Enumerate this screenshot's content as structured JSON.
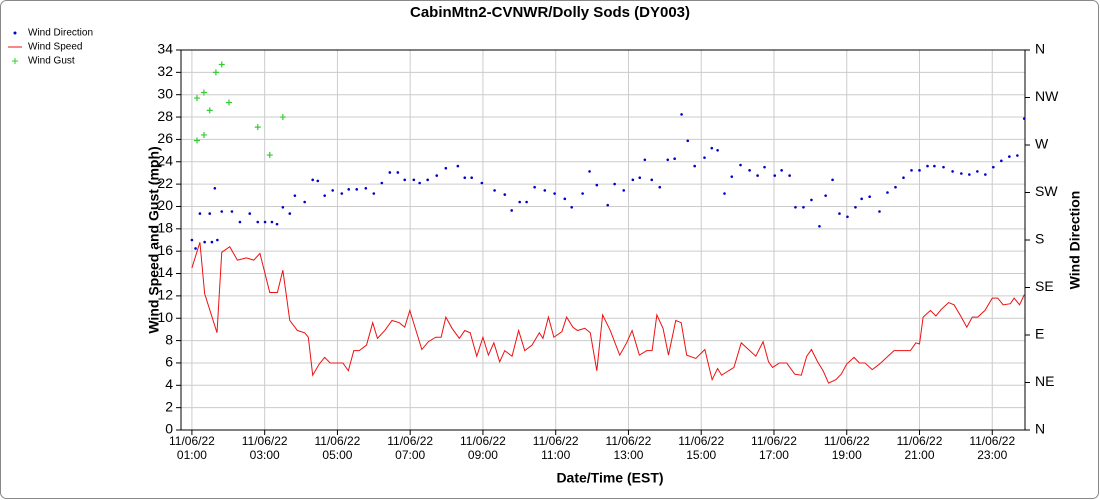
{
  "chart_data": {
    "type": "line",
    "title": "CabinMtn2-CVNWR/Dolly Sods (DY003)",
    "xlabel": "Date/Time (EST)",
    "ylabel": "Wind Speed and Gust (mph)",
    "y2label": "Wind Direction",
    "grid": true,
    "legend": "top-left",
    "xlim": [
      0.7,
      23.9
    ],
    "xticks": [
      {
        "value": 1,
        "label": "11/06/22 01:00"
      },
      {
        "value": 3,
        "label": "11/06/22 03:00"
      },
      {
        "value": 5,
        "label": "11/06/22 05:00"
      },
      {
        "value": 7,
        "label": "11/06/22 07:00"
      },
      {
        "value": 9,
        "label": "11/06/22 09:00"
      },
      {
        "value": 11,
        "label": "11/06/22 11:00"
      },
      {
        "value": 13,
        "label": "11/06/22 13:00"
      },
      {
        "value": 15,
        "label": "11/06/22 15:00"
      },
      {
        "value": 17,
        "label": "11/06/22 17:00"
      },
      {
        "value": 19,
        "label": "11/06/22 19:00"
      },
      {
        "value": 21,
        "label": "11/06/22 21:00"
      },
      {
        "value": 23,
        "label": "11/06/22 23:00"
      }
    ],
    "ylim": [
      0,
      34
    ],
    "yticks": [
      0,
      2,
      4,
      6,
      8,
      10,
      12,
      14,
      16,
      18,
      20,
      22,
      24,
      26,
      28,
      30,
      32,
      34
    ],
    "y2lim": [
      0,
      360
    ],
    "y2ticks": [
      {
        "value": 0,
        "label": "N"
      },
      {
        "value": 45,
        "label": "NE"
      },
      {
        "value": 90,
        "label": "E"
      },
      {
        "value": 135,
        "label": "SE"
      },
      {
        "value": 180,
        "label": "S"
      },
      {
        "value": 225,
        "label": "SW"
      },
      {
        "value": 270,
        "label": "W"
      },
      {
        "value": 315,
        "label": "NW"
      },
      {
        "value": 360,
        "label": "N"
      }
    ],
    "series": [
      {
        "name": "Wind Direction",
        "color": "#0000cc",
        "style": "dot",
        "axis": "y2",
        "x": [
          1.0,
          1.1,
          1.22,
          1.35,
          1.49,
          1.55,
          1.63,
          1.7,
          1.82,
          2.1,
          2.32,
          2.59,
          2.81,
          3.01,
          3.2,
          3.34,
          3.5,
          3.69,
          3.83,
          4.1,
          4.32,
          4.46,
          4.65,
          4.87,
          5.12,
          5.31,
          5.53,
          5.78,
          6.0,
          6.22,
          6.44,
          6.66,
          6.85,
          7.1,
          7.26,
          7.48,
          7.73,
          7.98,
          8.31,
          8.5,
          8.69,
          8.97,
          9.32,
          9.6,
          9.79,
          10.01,
          10.2,
          10.42,
          10.7,
          10.97,
          11.25,
          11.44,
          11.74,
          11.93,
          12.13,
          12.43,
          12.62,
          12.87,
          13.12,
          13.31,
          13.45,
          13.64,
          13.86,
          14.08,
          14.27,
          14.46,
          14.63,
          14.82,
          15.09,
          15.29,
          15.45,
          15.64,
          15.84,
          16.08,
          16.33,
          16.55,
          16.74,
          17.02,
          17.21,
          17.43,
          17.59,
          17.81,
          18.03,
          18.25,
          18.42,
          18.61,
          18.8,
          19.02,
          19.24,
          19.41,
          19.63,
          19.9,
          20.12,
          20.34,
          20.56,
          20.78,
          21.0,
          21.22,
          21.41,
          21.66,
          21.91,
          22.15,
          22.37,
          22.59,
          22.81,
          23.03,
          23.25,
          23.47,
          23.69,
          23.88
        ],
        "values": [
          180,
          172,
          205,
          178,
          205,
          178,
          229,
          180,
          207,
          207,
          197,
          205,
          197,
          197,
          197,
          195,
          211,
          205,
          222,
          216,
          237,
          236,
          222,
          227,
          224,
          228,
          228,
          229,
          224,
          234,
          244,
          244,
          237,
          237,
          234,
          237,
          241,
          248,
          250,
          239,
          239,
          234,
          227,
          223,
          208,
          216,
          216,
          230,
          227,
          224,
          219,
          211,
          224,
          245,
          232,
          213,
          233,
          227,
          237,
          239,
          256,
          237,
          230,
          256,
          257,
          299,
          274,
          250,
          258,
          267,
          265,
          224,
          240,
          251,
          246,
          241,
          249,
          241,
          246,
          241,
          211,
          211,
          218,
          193,
          222,
          237,
          205,
          202,
          211,
          219,
          221,
          207,
          225,
          230,
          239,
          246,
          246,
          250,
          250,
          249,
          245,
          243,
          242,
          245,
          242,
          249,
          255,
          259,
          260,
          295
        ]
      },
      {
        "name": "Wind Speed",
        "color": "#ee1111",
        "style": "line",
        "x": [
          1.0,
          1.22,
          1.35,
          1.69,
          1.82,
          2.04,
          2.25,
          2.5,
          2.7,
          2.87,
          3.14,
          3.35,
          3.5,
          3.69,
          3.9,
          4.1,
          4.2,
          4.32,
          4.5,
          4.65,
          4.8,
          5.0,
          5.15,
          5.3,
          5.45,
          5.6,
          5.8,
          5.97,
          6.1,
          6.3,
          6.5,
          6.7,
          6.85,
          6.99,
          7.15,
          7.32,
          7.5,
          7.7,
          7.85,
          7.98,
          8.15,
          8.35,
          8.5,
          8.65,
          8.83,
          9.0,
          9.15,
          9.3,
          9.46,
          9.6,
          9.8,
          9.98,
          10.15,
          10.35,
          10.55,
          10.65,
          10.8,
          10.95,
          11.17,
          11.3,
          11.47,
          11.6,
          11.8,
          11.95,
          12.13,
          12.29,
          12.5,
          12.76,
          12.95,
          13.1,
          13.3,
          13.5,
          13.65,
          13.78,
          13.95,
          14.1,
          14.3,
          14.45,
          14.6,
          14.85,
          15.1,
          15.3,
          15.45,
          15.56,
          15.75,
          15.9,
          16.1,
          16.3,
          16.5,
          16.7,
          16.85,
          16.96,
          17.15,
          17.35,
          17.57,
          17.75,
          17.9,
          18.03,
          18.2,
          18.35,
          18.5,
          18.7,
          18.85,
          19.0,
          19.2,
          19.35,
          19.5,
          19.7,
          19.9,
          20.1,
          20.3,
          20.5,
          20.75,
          20.9,
          21.0,
          21.1,
          21.3,
          21.45,
          21.6,
          21.8,
          21.95,
          22.15,
          22.3,
          22.45,
          22.6,
          22.8,
          23.0,
          23.15,
          23.3,
          23.5,
          23.6,
          23.75,
          23.88
        ],
        "values": [
          14.5,
          16.8,
          12.2,
          8.7,
          15.9,
          16.4,
          15.2,
          15.4,
          15.2,
          15.8,
          12.3,
          12.3,
          14.3,
          9.8,
          8.9,
          8.7,
          8.3,
          4.9,
          5.9,
          6.5,
          6.0,
          6.0,
          6.0,
          5.3,
          7.1,
          7.1,
          7.6,
          9.6,
          8.2,
          8.9,
          9.8,
          9.6,
          9.2,
          10.7,
          9.0,
          7.2,
          7.9,
          8.3,
          8.3,
          10.1,
          9.1,
          8.2,
          8.9,
          8.7,
          6.6,
          8.3,
          6.7,
          7.8,
          6.1,
          7.1,
          6.6,
          8.9,
          7.1,
          7.6,
          8.7,
          8.2,
          10.1,
          8.3,
          8.8,
          10.1,
          9.2,
          8.9,
          9.1,
          8.7,
          5.3,
          10.3,
          8.9,
          6.7,
          7.8,
          8.9,
          6.7,
          7.1,
          7.1,
          10.3,
          9.1,
          6.7,
          9.8,
          9.6,
          6.7,
          6.4,
          7.2,
          4.5,
          5.5,
          4.9,
          5.3,
          5.6,
          7.8,
          7.2,
          6.6,
          7.9,
          6.1,
          5.6,
          6.0,
          6.0,
          5.0,
          4.9,
          6.6,
          7.2,
          6.1,
          5.3,
          4.2,
          4.5,
          5.0,
          5.9,
          6.5,
          6.0,
          6.0,
          5.4,
          5.9,
          6.5,
          7.1,
          7.1,
          7.1,
          7.8,
          7.7,
          10.1,
          10.7,
          10.2,
          10.8,
          11.4,
          11.2,
          10.1,
          9.2,
          10.1,
          10.1,
          10.7,
          11.8,
          11.8,
          11.2,
          11.3,
          11.8,
          11.2,
          12.1
        ]
      },
      {
        "name": "Wind Gust",
        "color": "#33cc33",
        "style": "plus",
        "x": [
          1.14,
          1.14,
          1.33,
          1.33,
          1.49,
          1.66,
          1.82,
          2.02,
          2.81,
          3.14,
          3.5
        ],
        "values": [
          25.9,
          29.7,
          30.2,
          26.4,
          28.6,
          32.0,
          32.7,
          29.3,
          27.1,
          24.6,
          28.0
        ]
      }
    ]
  }
}
